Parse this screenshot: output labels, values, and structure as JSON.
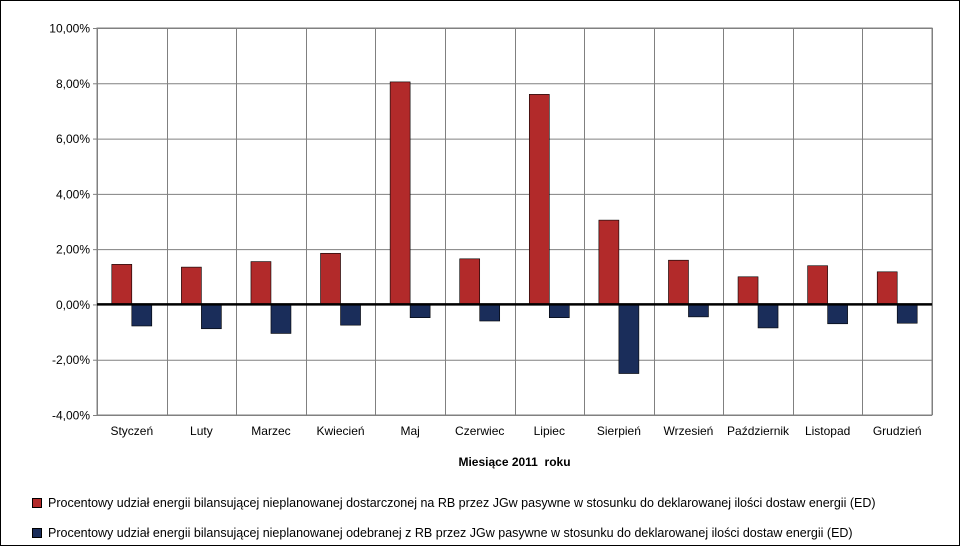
{
  "chart_data": {
    "type": "bar",
    "categories": [
      "Styczeń",
      "Luty",
      "Marzec",
      "Kwiecień",
      "Maj",
      "Czerwiec",
      "Lipiec",
      "Sierpień",
      "Wrzesień",
      "Październik",
      "Listopad",
      "Grudzień"
    ],
    "series": [
      {
        "name": "Procentowy udział energii bilansującej nieplanowanej dostarczonej na RB przez JGw pasywne w stosunku do deklarowanej ilości dostaw energii (ED)",
        "color": "#b22a2a",
        "values": [
          1.45,
          1.35,
          1.55,
          1.85,
          8.05,
          1.65,
          7.6,
          3.05,
          1.6,
          1.0,
          1.4,
          1.18
        ]
      },
      {
        "name": "Procentowy udział energii bilansującej nieplanowanej odebranej z RB przez JGw pasywne w stosunku do deklarowanej ilości dostaw energii (ED)",
        "color": "#1a2d5a",
        "values": [
          -0.78,
          -0.88,
          -1.05,
          -0.75,
          -0.48,
          -0.6,
          -0.48,
          -2.5,
          -0.45,
          -0.85,
          -0.7,
          -0.68
        ]
      }
    ],
    "xlabel": "Miesiące 2011  roku",
    "ylabel": "",
    "ylim": [
      -4,
      10
    ],
    "yticks": [
      -4,
      -2,
      0,
      2,
      4,
      6,
      8,
      10
    ],
    "ytick_labels": [
      "-4,00%",
      "-2,00%",
      "0,00%",
      "2,00%",
      "4,00%",
      "6,00%",
      "8,00%",
      "10,00%"
    ],
    "grid": true,
    "legend_position": "bottom"
  }
}
